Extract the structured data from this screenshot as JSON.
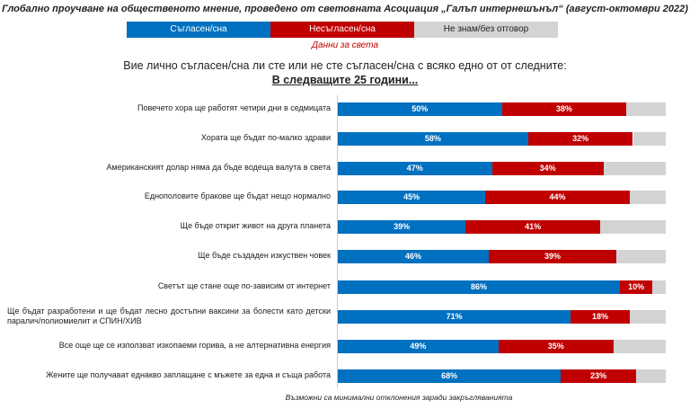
{
  "title": "Глобално проучване на общественото мнение, проведено от световната Асоциация „Галъп интернешънъл“ (август-октомври 2022)",
  "subtitle": "Данни за света",
  "question": "Вие лично съгласен/сна ли сте или не сте съгласен/сна с всяко едно от от следните:",
  "question_sub": "В следващите 25 години...",
  "note": "Възможни са минимални отклонения заради закръгляванията",
  "colors": {
    "agree": "#0070c0",
    "disagree": "#c00000",
    "dont_know": "#d3d3d3"
  },
  "chart_data": {
    "type": "bar",
    "orientation": "horizontal",
    "stacked": true,
    "xlim": [
      0,
      100
    ],
    "series_names": [
      "Съгласен/сна",
      "Несъгласен/сна",
      "Не знам/без отговор"
    ],
    "categories": [
      "Повечето хора ще работят четири дни в седмицата",
      "Хората ще бъдат по-малко здрави",
      "Американският долар няма да бъде водеща валута в света",
      "Еднополовите бракове ще бъдат нещо нормално",
      "Ще бъде открит живот на друга планета",
      "Ще бъде създаден изкуствен човек",
      "Светът ще стане още по-зависим от интернет",
      "Ще бъдат разработени и ще бъдат лесно достъпни ваксини за болести като детски паралич/полиомиелит и СПИН/ХИВ",
      "Все още ще се използват изкопаеми горива, а не алтернативна енергия",
      "Жените ще получават еднакво заплащане с мъжете за една и съща работа"
    ],
    "agree": [
      50,
      58,
      47,
      45,
      39,
      46,
      86,
      71,
      49,
      68
    ],
    "disagree": [
      38,
      32,
      34,
      44,
      41,
      39,
      10,
      18,
      35,
      23
    ],
    "agree_labels": [
      "50%",
      "58%",
      "47%",
      "45%",
      "39%",
      "46%",
      "86%",
      "71%",
      "49%",
      "68%"
    ],
    "disagree_labels": [
      "38%",
      "32%",
      "34%",
      "44%",
      "41%",
      "39%",
      "10%",
      "18%",
      "35%",
      "23%"
    ]
  }
}
